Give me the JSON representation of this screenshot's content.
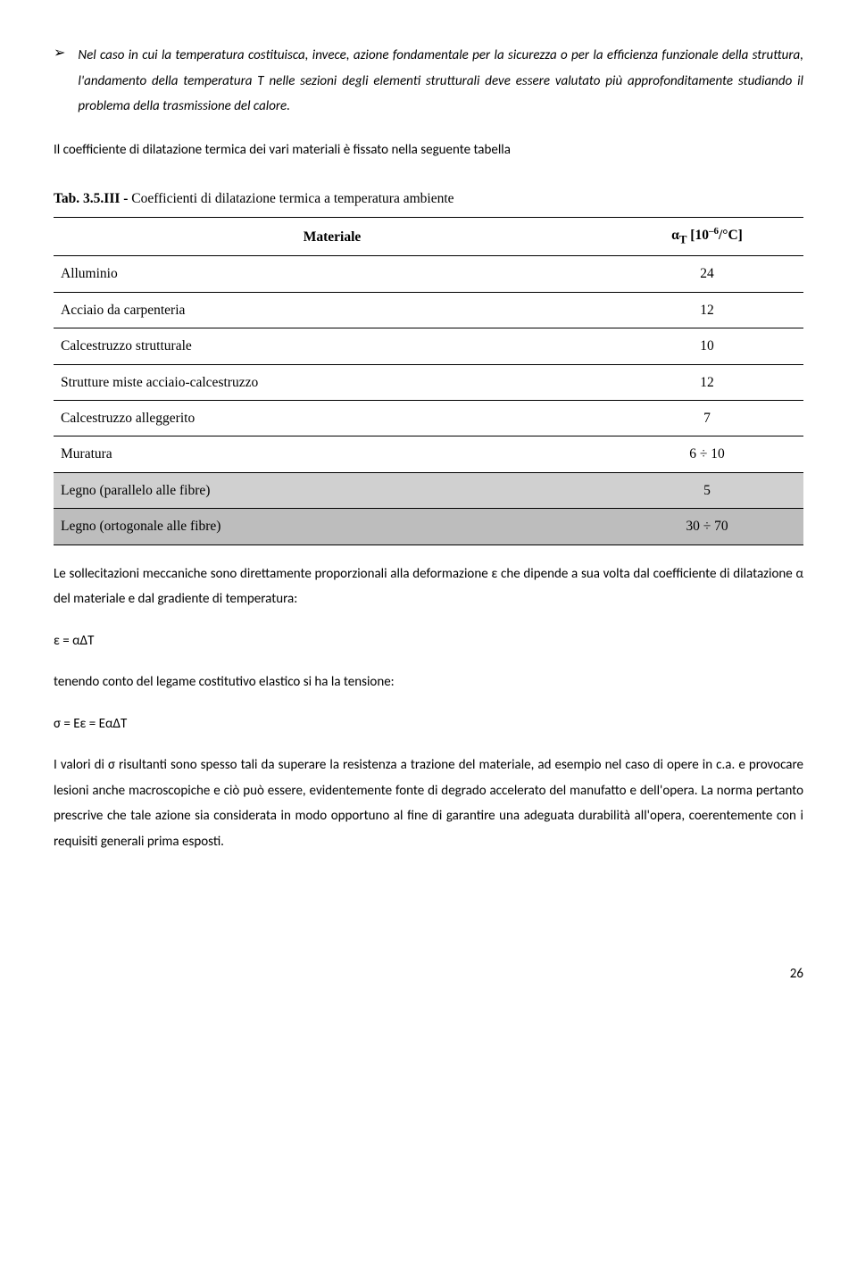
{
  "bullet": {
    "marker": "➢",
    "text": "Nel caso in cui la temperatura costituisca, invece, azione fondamentale per la sicurezza o per la efficienza funzionale della struttura, l'andamento della temperatura T nelle sezioni degli elementi strutturali deve essere valutato più approfonditamente studiando il problema della trasmissione del calore."
  },
  "intro_after": "Il coefficiente di dilatazione termica dei vari materiali è fissato nella seguente tabella",
  "table": {
    "caption_bold": "Tab. 3.5.III - ",
    "caption_rest": "Coefficienti di dilatazione termica a temperatura ambiente",
    "col1_header": "Materiale",
    "col2_header": "α",
    "col2_header_sub": "T",
    "col2_header_unit_pre": " [10",
    "col2_header_unit_sup": "–6",
    "col2_header_unit_post": "/°C]",
    "rows": [
      {
        "material": "Alluminio",
        "value": "24",
        "shade": ""
      },
      {
        "material": "Acciaio da carpenteria",
        "value": "12",
        "shade": ""
      },
      {
        "material": "Calcestruzzo strutturale",
        "value": "10",
        "shade": ""
      },
      {
        "material": "Strutture miste acciaio-calcestruzzo",
        "value": "12",
        "shade": ""
      },
      {
        "material": "Calcestruzzo alleggerito",
        "value": "7",
        "shade": ""
      },
      {
        "material": "Muratura",
        "value": "6 ÷ 10",
        "shade": ""
      },
      {
        "material": "Legno (parallelo alle fibre)",
        "value": "5",
        "shade": "shade1"
      },
      {
        "material": "Legno (ortogonale alle fibre)",
        "value": "30 ÷ 70",
        "shade": "shade2"
      }
    ]
  },
  "body": {
    "p1": "Le sollecitazioni meccaniche sono direttamente proporzionali alla deformazione ε  che dipende a sua volta dal coefficiente di dilatazione α del materiale e dal gradiente di temperatura:",
    "eq1": "ε = αΔT",
    "p2": "tenendo conto del legame costitutivo elastico si ha la tensione:",
    "eq2": "σ = Eε  = EαΔT",
    "p3": "I valori di σ risultanti sono spesso tali da superare la resistenza a trazione del materiale, ad esempio nel caso di opere in c.a. e provocare lesioni anche macroscopiche e  ciò può essere, evidentemente fonte di degrado accelerato del manufatto e dell'opera. La norma pertanto prescrive che tale azione sia considerata in modo opportuno al fine di garantire una adeguata durabilità all'opera, coerentemente con i requisiti generali prima esposti."
  },
  "page_number": "26"
}
